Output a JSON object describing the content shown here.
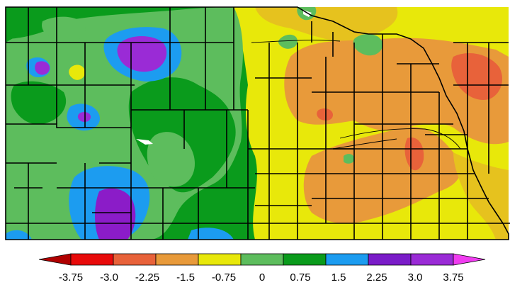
{
  "colors": {
    "deep_purple": "#8b1cc8",
    "purple": "#9a2bd6",
    "blue": "#1c9cf0",
    "dark_green": "#0a9b1c",
    "light_green": "#5dbd5d",
    "yellow": "#e8e80a",
    "yellow_orange": "#e6c21e",
    "orange": "#e89a3a",
    "orange_red": "#e8623a",
    "red": "#e80a0a",
    "dark_red": "#b00000",
    "magenta": "#f03cf0",
    "border": "#000000"
  },
  "legend": {
    "tick_labels": [
      "-3.75",
      "-3.0",
      "-2.25",
      "-1.5",
      "-0.75",
      "0",
      "0.75",
      "1.5",
      "2.25",
      "3.0",
      "3.75"
    ],
    "colors": [
      "#b00000",
      "#e80a0a",
      "#e8623a",
      "#e89a3a",
      "#e8e80a",
      "#5dbd5d",
      "#0a9b1c",
      "#1c9cf0",
      "#7a1cc8",
      "#9a2bd6",
      "#f03cf0"
    ]
  }
}
